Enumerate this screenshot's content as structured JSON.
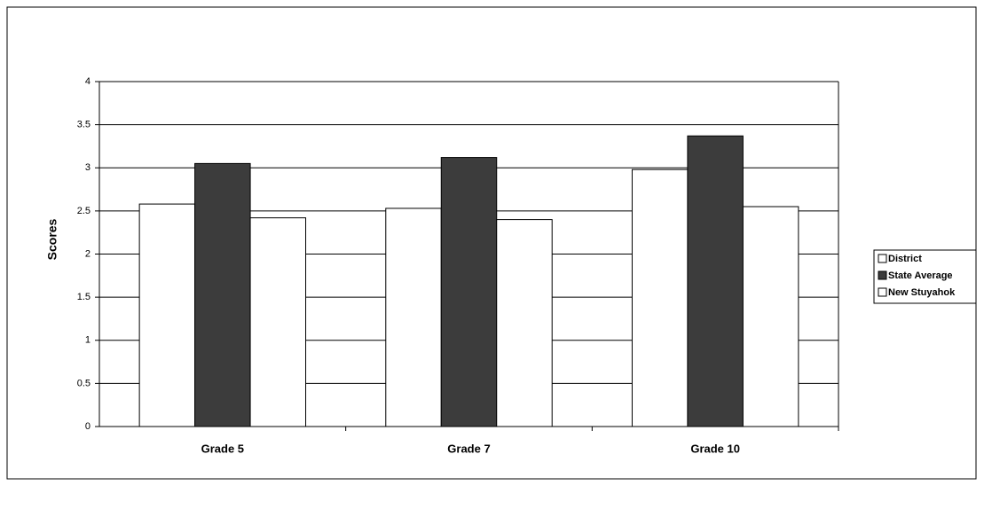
{
  "chart_data": {
    "type": "bar",
    "y_label": "Scores",
    "categories": [
      "Grade 5",
      "Grade 7",
      "Grade 10"
    ],
    "series": [
      {
        "name": "District",
        "color": "#ffffff",
        "values": [
          2.58,
          2.53,
          2.98
        ]
      },
      {
        "name": "State Average",
        "color": "#3c3c3c",
        "values": [
          3.05,
          3.12,
          3.37
        ]
      },
      {
        "name": "New Stuyahok",
        "color": "#ffffff",
        "values": [
          2.42,
          2.4,
          2.55
        ]
      }
    ],
    "ylim": [
      0,
      4
    ],
    "yticks": [
      0,
      0.5,
      1,
      1.5,
      2,
      2.5,
      3,
      3.5,
      4
    ],
    "grid": true,
    "legend": "right"
  }
}
